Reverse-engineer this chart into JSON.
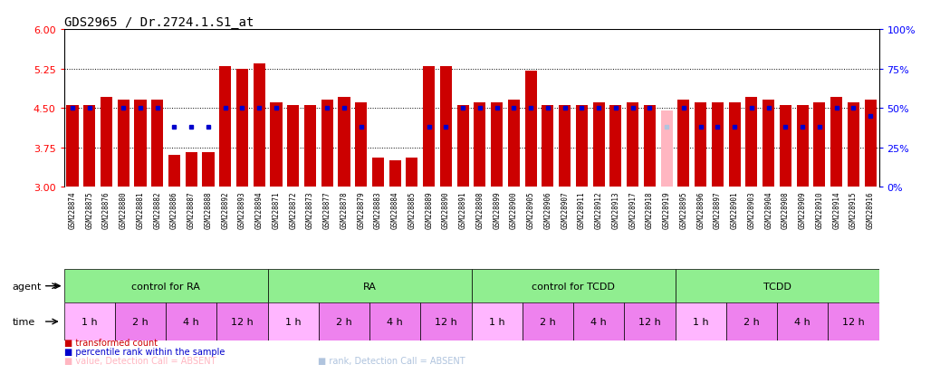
{
  "title": "GDS2965 / Dr.2724.1.S1_at",
  "ylim_left": [
    3,
    6
  ],
  "ylim_right": [
    0,
    100
  ],
  "yticks_left": [
    3,
    3.75,
    4.5,
    5.25,
    6
  ],
  "yticks_right": [
    0,
    25,
    50,
    75,
    100
  ],
  "hlines": [
    3.75,
    4.5,
    5.25
  ],
  "samples": [
    "GSM228874",
    "GSM228875",
    "GSM228876",
    "GSM228880",
    "GSM228881",
    "GSM228882",
    "GSM228886",
    "GSM228887",
    "GSM228888",
    "GSM228892",
    "GSM228893",
    "GSM228894",
    "GSM228871",
    "GSM228872",
    "GSM228873",
    "GSM228877",
    "GSM228878",
    "GSM228879",
    "GSM228883",
    "GSM228884",
    "GSM228885",
    "GSM228889",
    "GSM228890",
    "GSM228891",
    "GSM228898",
    "GSM228899",
    "GSM228900",
    "GSM228905",
    "GSM228906",
    "GSM228907",
    "GSM228911",
    "GSM228912",
    "GSM228913",
    "GSM228917",
    "GSM228918",
    "GSM228919",
    "GSM228895",
    "GSM228896",
    "GSM228897",
    "GSM228901",
    "GSM228903",
    "GSM228904",
    "GSM228908",
    "GSM228909",
    "GSM228910",
    "GSM228914",
    "GSM228915",
    "GSM228916"
  ],
  "bar_values": [
    4.55,
    4.55,
    4.7,
    4.65,
    4.65,
    4.65,
    3.6,
    3.65,
    3.65,
    5.3,
    5.25,
    5.35,
    4.6,
    4.55,
    4.55,
    4.65,
    4.7,
    4.6,
    3.55,
    3.5,
    3.55,
    5.3,
    5.3,
    4.55,
    4.6,
    4.6,
    4.65,
    5.2,
    4.55,
    4.55,
    4.55,
    4.6,
    4.55,
    4.6,
    4.55,
    4.45,
    4.65,
    4.6,
    4.6,
    4.6,
    4.7,
    4.65,
    4.55,
    4.55,
    4.6,
    4.7,
    4.6,
    4.65
  ],
  "absent_bar_indices": [
    35
  ],
  "rank_values": [
    50,
    50,
    null,
    50,
    50,
    50,
    38,
    38,
    38,
    50,
    50,
    50,
    50,
    null,
    null,
    50,
    50,
    38,
    null,
    null,
    null,
    38,
    38,
    50,
    50,
    50,
    50,
    50,
    50,
    50,
    50,
    50,
    50,
    50,
    50,
    38,
    50,
    38,
    38,
    38,
    50,
    50,
    38,
    38,
    38,
    50,
    50,
    45
  ],
  "rank_absent_indices": [
    35
  ],
  "agents": [
    {
      "label": "control for RA",
      "start": 0,
      "end": 12
    },
    {
      "label": "RA",
      "start": 12,
      "end": 24
    },
    {
      "label": "control for TCDD",
      "start": 24,
      "end": 36
    },
    {
      "label": "TCDD",
      "start": 36,
      "end": 48
    }
  ],
  "times": [
    {
      "label": "1 h",
      "is_white": true,
      "start": 0,
      "end": 3
    },
    {
      "label": "2 h",
      "is_white": false,
      "start": 3,
      "end": 6
    },
    {
      "label": "4 h",
      "is_white": false,
      "start": 6,
      "end": 9
    },
    {
      "label": "12 h",
      "is_white": false,
      "start": 9,
      "end": 12
    },
    {
      "label": "1 h",
      "is_white": true,
      "start": 12,
      "end": 15
    },
    {
      "label": "2 h",
      "is_white": false,
      "start": 15,
      "end": 18
    },
    {
      "label": "4 h",
      "is_white": false,
      "start": 18,
      "end": 21
    },
    {
      "label": "12 h",
      "is_white": false,
      "start": 21,
      "end": 24
    },
    {
      "label": "1 h",
      "is_white": true,
      "start": 24,
      "end": 27
    },
    {
      "label": "2 h",
      "is_white": false,
      "start": 27,
      "end": 30
    },
    {
      "label": "4 h",
      "is_white": false,
      "start": 30,
      "end": 33
    },
    {
      "label": "12 h",
      "is_white": false,
      "start": 33,
      "end": 36
    },
    {
      "label": "1 h",
      "is_white": true,
      "start": 36,
      "end": 39
    },
    {
      "label": "2 h",
      "is_white": false,
      "start": 39,
      "end": 42
    },
    {
      "label": "4 h",
      "is_white": false,
      "start": 42,
      "end": 45
    },
    {
      "label": "12 h",
      "is_white": false,
      "start": 45,
      "end": 48
    }
  ],
  "bar_color": "#CC0000",
  "absent_bar_color": "#FFB6C1",
  "rank_color": "#0000CC",
  "rank_absent_color": "#B0C4DE",
  "agent_color": "#90EE90",
  "time_white_color": "#FFB6FF",
  "time_purple_color": "#EE82EE",
  "xtick_bg_color": "#D8D8D8",
  "title_fontsize": 10,
  "sample_fontsize": 5.5,
  "legend_fontsize": 7,
  "row_label_fontsize": 8,
  "time_fontsize": 8,
  "agent_fontsize": 8
}
